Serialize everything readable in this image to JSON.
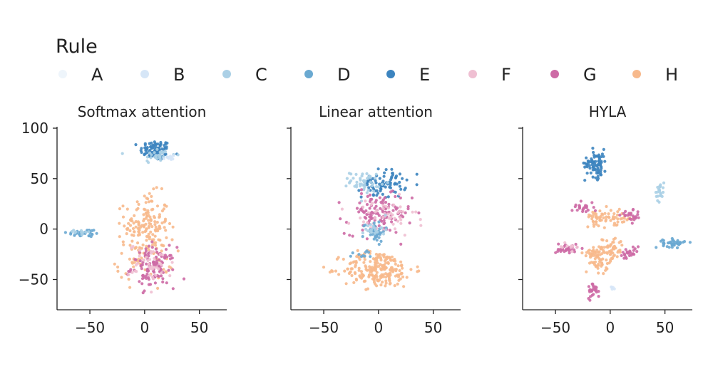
{
  "legend": {
    "title": "Rule",
    "items": [
      {
        "label": "A",
        "color": "#eef5fb"
      },
      {
        "label": "B",
        "color": "#d6e6f7"
      },
      {
        "label": "C",
        "color": "#abd0e6"
      },
      {
        "label": "D",
        "color": "#6aa9d1"
      },
      {
        "label": "E",
        "color": "#3c84bf"
      },
      {
        "label": "F",
        "color": "#efbfd2"
      },
      {
        "label": "G",
        "color": "#cd6aa5"
      },
      {
        "label": "H",
        "color": "#f7b98c"
      }
    ]
  },
  "chart_data": [
    {
      "type": "scatter",
      "title": "Softmax attention",
      "xlim": [
        -80,
        75
      ],
      "ylim": [
        -80,
        100
      ],
      "xticks": [
        -50,
        0,
        50
      ],
      "yticks": [
        -50,
        0,
        50,
        100
      ],
      "clusters": [
        {
          "rule": "E",
          "cx": 10,
          "cy": 78,
          "sx": 7,
          "sy": 5,
          "n": 90
        },
        {
          "rule": "C",
          "cx": 12,
          "cy": 73,
          "sx": 8,
          "sy": 4,
          "n": 30
        },
        {
          "rule": "B",
          "cx": 22,
          "cy": 70,
          "sx": 3,
          "sy": 2,
          "n": 10
        },
        {
          "rule": "D",
          "cx": -55,
          "cy": -4,
          "sx": 8,
          "sy": 2,
          "n": 35
        },
        {
          "rule": "C",
          "cx": -58,
          "cy": -3,
          "sx": 5,
          "sy": 2,
          "n": 10
        },
        {
          "rule": "H",
          "cx": 2,
          "cy": 5,
          "sx": 10,
          "sy": 15,
          "n": 150
        },
        {
          "rule": "H",
          "cx": 0,
          "cy": -30,
          "sx": 13,
          "sy": 10,
          "n": 60
        },
        {
          "rule": "G",
          "cx": 8,
          "cy": -38,
          "sx": 10,
          "sy": 10,
          "n": 110
        },
        {
          "rule": "F",
          "cx": 6,
          "cy": -35,
          "sx": 10,
          "sy": 10,
          "n": 40
        }
      ]
    },
    {
      "type": "scatter",
      "title": "Linear attention",
      "xlim": [
        -80,
        75
      ],
      "ylim": [
        -80,
        100
      ],
      "xticks": [
        -50,
        0,
        50
      ],
      "yticks": [
        -50,
        0,
        50,
        100
      ],
      "clusters": [
        {
          "rule": "E",
          "cx": 5,
          "cy": 45,
          "sx": 10,
          "sy": 7,
          "n": 80
        },
        {
          "rule": "C",
          "cx": -12,
          "cy": 47,
          "sx": 7,
          "sy": 5,
          "n": 50
        },
        {
          "rule": "G",
          "cx": 0,
          "cy": 15,
          "sx": 15,
          "sy": 10,
          "n": 120
        },
        {
          "rule": "F",
          "cx": 5,
          "cy": 10,
          "sx": 15,
          "sy": 10,
          "n": 50
        },
        {
          "rule": "D",
          "cx": -4,
          "cy": -2,
          "sx": 5,
          "sy": 5,
          "n": 40
        },
        {
          "rule": "C",
          "cx": -2,
          "cy": 0,
          "sx": 5,
          "sy": 4,
          "n": 20
        },
        {
          "rule": "H",
          "cx": 0,
          "cy": -40,
          "sx": 16,
          "sy": 9,
          "n": 220
        },
        {
          "rule": "D",
          "cx": -15,
          "cy": -25,
          "sx": 6,
          "sy": 2,
          "n": 10
        }
      ]
    },
    {
      "type": "scatter",
      "title": "HYLA",
      "xlim": [
        -80,
        75
      ],
      "ylim": [
        -80,
        100
      ],
      "xticks": [
        -50,
        0,
        50
      ],
      "yticks": [
        -50,
        0,
        50,
        100
      ],
      "clusters": [
        {
          "rule": "E",
          "cx": -13,
          "cy": 65,
          "sx": 5,
          "sy": 7,
          "n": 80
        },
        {
          "rule": "C",
          "cx": 45,
          "cy": 38,
          "sx": 2,
          "sy": 5,
          "n": 25
        },
        {
          "rule": "D",
          "cx": 58,
          "cy": -14,
          "sx": 5,
          "sy": 2,
          "n": 45
        },
        {
          "rule": "H",
          "cx": -10,
          "cy": 12,
          "sx": 6,
          "sy": 4,
          "n": 40
        },
        {
          "rule": "H",
          "cx": 7,
          "cy": 10,
          "sx": 6,
          "sy": 4,
          "n": 30
        },
        {
          "rule": "G",
          "cx": -25,
          "cy": 22,
          "sx": 5,
          "sy": 3,
          "n": 25
        },
        {
          "rule": "G",
          "cx": 20,
          "cy": 12,
          "sx": 5,
          "sy": 3,
          "n": 25
        },
        {
          "rule": "H",
          "cx": 0,
          "cy": -20,
          "sx": 6,
          "sy": 6,
          "n": 60
        },
        {
          "rule": "H",
          "cx": -16,
          "cy": -24,
          "sx": 4,
          "sy": 4,
          "n": 30
        },
        {
          "rule": "H",
          "cx": -10,
          "cy": -35,
          "sx": 4,
          "sy": 4,
          "n": 30
        },
        {
          "rule": "G",
          "cx": -40,
          "cy": -19,
          "sx": 5,
          "sy": 3,
          "n": 30
        },
        {
          "rule": "G",
          "cx": 18,
          "cy": -25,
          "sx": 5,
          "sy": 3,
          "n": 25
        },
        {
          "rule": "F",
          "cx": -38,
          "cy": -18,
          "sx": 4,
          "sy": 3,
          "n": 10
        },
        {
          "rule": "G",
          "cx": -15,
          "cy": -60,
          "sx": 3,
          "sy": 4,
          "n": 25
        },
        {
          "rule": "B",
          "cx": 2,
          "cy": -58,
          "sx": 1,
          "sy": 1,
          "n": 5
        }
      ]
    }
  ]
}
